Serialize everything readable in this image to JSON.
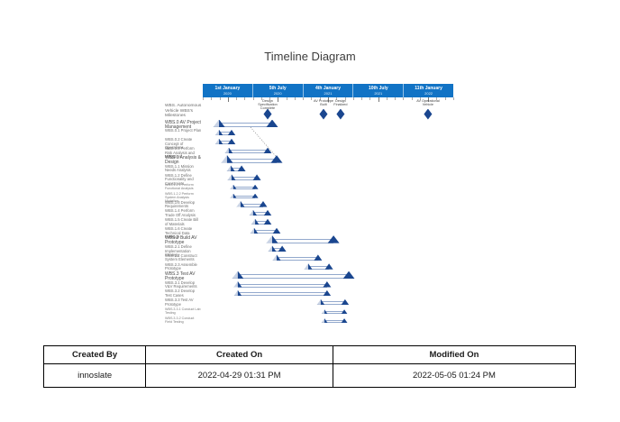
{
  "title": "Timeline Diagram",
  "colors": {
    "axis_blue": "#1173C5",
    "marker_dark": "#1A468F",
    "marker_light": "#C9D3E5",
    "bar_border": "#93A9CD"
  },
  "timeline": {
    "axis": [
      {
        "date": "1st January",
        "year": "2020"
      },
      {
        "date": "5th July",
        "year": "2020"
      },
      {
        "date": "4th January",
        "year": "2021"
      },
      {
        "date": "10th July",
        "year": "2021"
      },
      {
        "date": "11th January",
        "year": "2022"
      }
    ],
    "milestone_row_label": "WBS. Autonomous Vehicle WBS's Milestones",
    "milestones": [
      {
        "label": "Design Specification Complete",
        "x_pct": 25.9
      },
      {
        "label": "AV Prototype Built",
        "x_pct": 48.2
      },
      {
        "label": "Design Finalized",
        "x_pct": 55.0
      },
      {
        "label": "AV Operational Vehicle",
        "x_pct": 89.9
      }
    ],
    "rows": [
      {
        "label": "WBS.0 AV Project Management",
        "level": "parent",
        "start": 6.5,
        "end": 27.7
      },
      {
        "label": "WBS.0.1 Project Plan",
        "level": "child",
        "start": 6.5,
        "end": 11.5
      },
      {
        "label": "WBS.0.2 Create Concept of Operations",
        "level": "child",
        "start": 6.5,
        "end": 11.5
      },
      {
        "label": "WBS.0.3 Perform Risk Analysis and Mitigation",
        "level": "child",
        "start": 10.4,
        "end": 25.9
      },
      {
        "label": "WBS.1 Analysis & Design",
        "level": "parent",
        "start": 9.7,
        "end": 29.5
      },
      {
        "label": "WBS.1.1 Mission Needs Analysis",
        "level": "child",
        "start": 11.2,
        "end": 15.5
      },
      {
        "label": "WBS.1.2 Define Functionality and Constraints",
        "level": "child",
        "start": 11.5,
        "end": 21.6
      },
      {
        "label": "WBS.1.2.1 Perform Functional Analysis",
        "level": "sub",
        "start": 12.2,
        "end": 20.9
      },
      {
        "label": "WBS.1.2.2 Perform System Analysis Modeling",
        "level": "sub",
        "start": 12.2,
        "end": 20.9
      },
      {
        "label": "WBS.1.3 Develop Requirements",
        "level": "child",
        "start": 15.1,
        "end": 24.1
      },
      {
        "label": "WBS.1.4 Perform Trade Off Analysis",
        "level": "child",
        "start": 20.1,
        "end": 25.9
      },
      {
        "label": "WBS.1.5 Create Bill of Materials",
        "level": "child",
        "start": 20.9,
        "end": 25.9
      },
      {
        "label": "WBS.1.6 Create Technical Data Package",
        "level": "child",
        "start": 20.5,
        "end": 29.5
      },
      {
        "label": "WBS.2 Build AV Prototype",
        "level": "parent",
        "start": 27.7,
        "end": 52.2
      },
      {
        "label": "WBS.2.1 Define Implementation Strategy",
        "level": "child",
        "start": 27.7,
        "end": 31.7
      },
      {
        "label": "WBS.2.2 Construct System Elements",
        "level": "child",
        "start": 29.5,
        "end": 46.0
      },
      {
        "label": "WBS.2.3 Assemble Prototype",
        "level": "child",
        "start": 42.1,
        "end": 50.4
      },
      {
        "label": "WBS.3 Test AV Prototype",
        "level": "parent",
        "start": 14.0,
        "end": 58.3
      },
      {
        "label": "WBS.3.1 Develop V&V Requirements",
        "level": "child",
        "start": 14.0,
        "end": 49.6
      },
      {
        "label": "WBS.3.2 Develop Test Cases",
        "level": "child",
        "start": 14.0,
        "end": 49.6
      },
      {
        "label": "WBS.3.3 Test AV Prototype",
        "level": "child",
        "start": 47.1,
        "end": 56.8
      },
      {
        "label": "WBS.3.3.1 Conduct Lab Testing",
        "level": "sub",
        "start": 48.6,
        "end": 56.5
      },
      {
        "label": "WBS.3.3.2 Conduct Field Testing",
        "level": "sub",
        "start": 48.6,
        "end": 56.5
      }
    ]
  },
  "meta_table": {
    "headers": [
      "Created By",
      "Created On",
      "Modified On"
    ],
    "values": [
      "innoslate",
      "2022-04-29 01:31 PM",
      "2022-05-05 01:24 PM"
    ],
    "col_widths_pct": [
      19.2,
      35.2,
      45.6
    ]
  }
}
